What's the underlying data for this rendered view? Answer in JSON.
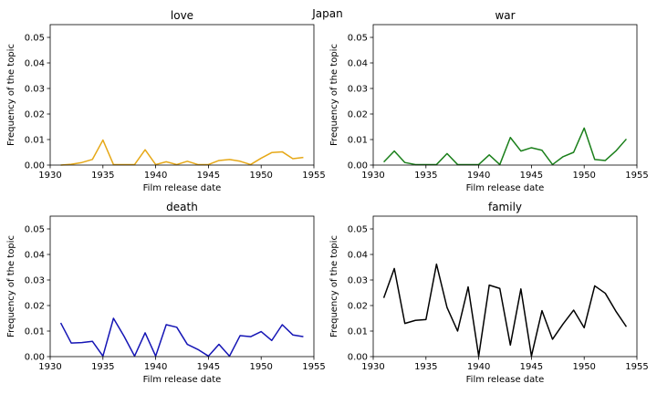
{
  "suptitle": "Japan",
  "chart_data": [
    {
      "type": "line",
      "title": "love",
      "xlabel": "Film release date",
      "ylabel": "Frequency of the topic",
      "color": "#e6a817",
      "xlim": [
        1930,
        1955
      ],
      "ylim": [
        0,
        0.055
      ],
      "xticks": [
        1930,
        1935,
        1940,
        1945,
        1950,
        1955
      ],
      "yticks": [
        "0.00",
        "0.01",
        "0.02",
        "0.03",
        "0.04",
        "0.05"
      ],
      "x": [
        1931,
        1932,
        1933,
        1934,
        1935,
        1936,
        1937,
        1938,
        1939,
        1940,
        1941,
        1942,
        1943,
        1944,
        1945,
        1946,
        1947,
        1948,
        1949,
        1950,
        1951,
        1952,
        1953,
        1954
      ],
      "y": [
        0.0,
        0.0003,
        0.001,
        0.0022,
        0.0098,
        0.0002,
        0.0002,
        0.0002,
        0.006,
        0.0002,
        0.0013,
        0.0002,
        0.0015,
        0.0002,
        0.0002,
        0.0018,
        0.0022,
        0.0015,
        0.0002,
        0.0027,
        0.0049,
        0.0052,
        0.0025,
        0.003
      ]
    },
    {
      "type": "line",
      "title": "war",
      "xlabel": "Film release date",
      "ylabel": "Frequency of the topic",
      "color": "#1a7f1a",
      "xlim": [
        1930,
        1955
      ],
      "ylim": [
        0,
        0.055
      ],
      "xticks": [
        1930,
        1935,
        1940,
        1945,
        1950,
        1955
      ],
      "yticks": [
        "0.00",
        "0.01",
        "0.02",
        "0.03",
        "0.04",
        "0.05"
      ],
      "x": [
        1931,
        1932,
        1933,
        1934,
        1935,
        1936,
        1937,
        1938,
        1939,
        1940,
        1941,
        1942,
        1943,
        1944,
        1945,
        1946,
        1947,
        1948,
        1949,
        1950,
        1951,
        1952,
        1953,
        1954
      ],
      "y": [
        0.0012,
        0.0055,
        0.001,
        0.0002,
        0.0002,
        0.0002,
        0.0045,
        0.0002,
        0.0002,
        0.0002,
        0.004,
        0.0002,
        0.0108,
        0.0055,
        0.0068,
        0.0058,
        0.0002,
        0.0033,
        0.005,
        0.0145,
        0.0022,
        0.0018,
        0.0055,
        0.0102
      ]
    },
    {
      "type": "line",
      "title": "death",
      "xlabel": "Film release date",
      "ylabel": "Frequency of the topic",
      "color": "#1515b5",
      "xlim": [
        1930,
        1955
      ],
      "ylim": [
        0,
        0.055
      ],
      "xticks": [
        1930,
        1935,
        1940,
        1945,
        1950,
        1955
      ],
      "yticks": [
        "0.00",
        "0.01",
        "0.02",
        "0.03",
        "0.04",
        "0.05"
      ],
      "x": [
        1931,
        1932,
        1933,
        1934,
        1935,
        1936,
        1937,
        1938,
        1939,
        1940,
        1941,
        1942,
        1943,
        1944,
        1945,
        1946,
        1947,
        1948,
        1949,
        1950,
        1951,
        1952,
        1953,
        1954
      ],
      "y": [
        0.0132,
        0.0053,
        0.0055,
        0.006,
        0.0002,
        0.015,
        0.008,
        0.0002,
        0.0093,
        0.0002,
        0.0125,
        0.0115,
        0.0048,
        0.0028,
        0.0002,
        0.0048,
        0.0002,
        0.0082,
        0.0078,
        0.0098,
        0.0063,
        0.0125,
        0.0085,
        0.0078
      ]
    },
    {
      "type": "line",
      "title": "family",
      "xlabel": "Film release date",
      "ylabel": "Frequency of the topic",
      "color": "#000000",
      "xlim": [
        1930,
        1955
      ],
      "ylim": [
        0,
        0.055
      ],
      "xticks": [
        1930,
        1935,
        1940,
        1945,
        1950,
        1955
      ],
      "yticks": [
        "0.00",
        "0.01",
        "0.02",
        "0.03",
        "0.04",
        "0.05"
      ],
      "x": [
        1931,
        1932,
        1933,
        1934,
        1935,
        1936,
        1937,
        1938,
        1939,
        1940,
        1941,
        1942,
        1943,
        1944,
        1945,
        1946,
        1947,
        1948,
        1949,
        1950,
        1951,
        1952,
        1953,
        1954
      ],
      "y": [
        0.023,
        0.0345,
        0.013,
        0.0142,
        0.0145,
        0.0362,
        0.0192,
        0.01,
        0.0273,
        0.0002,
        0.028,
        0.0267,
        0.0045,
        0.0265,
        0.0002,
        0.018,
        0.0068,
        0.0128,
        0.0182,
        0.0113,
        0.0277,
        0.0248,
        0.0178,
        0.0117
      ]
    }
  ]
}
